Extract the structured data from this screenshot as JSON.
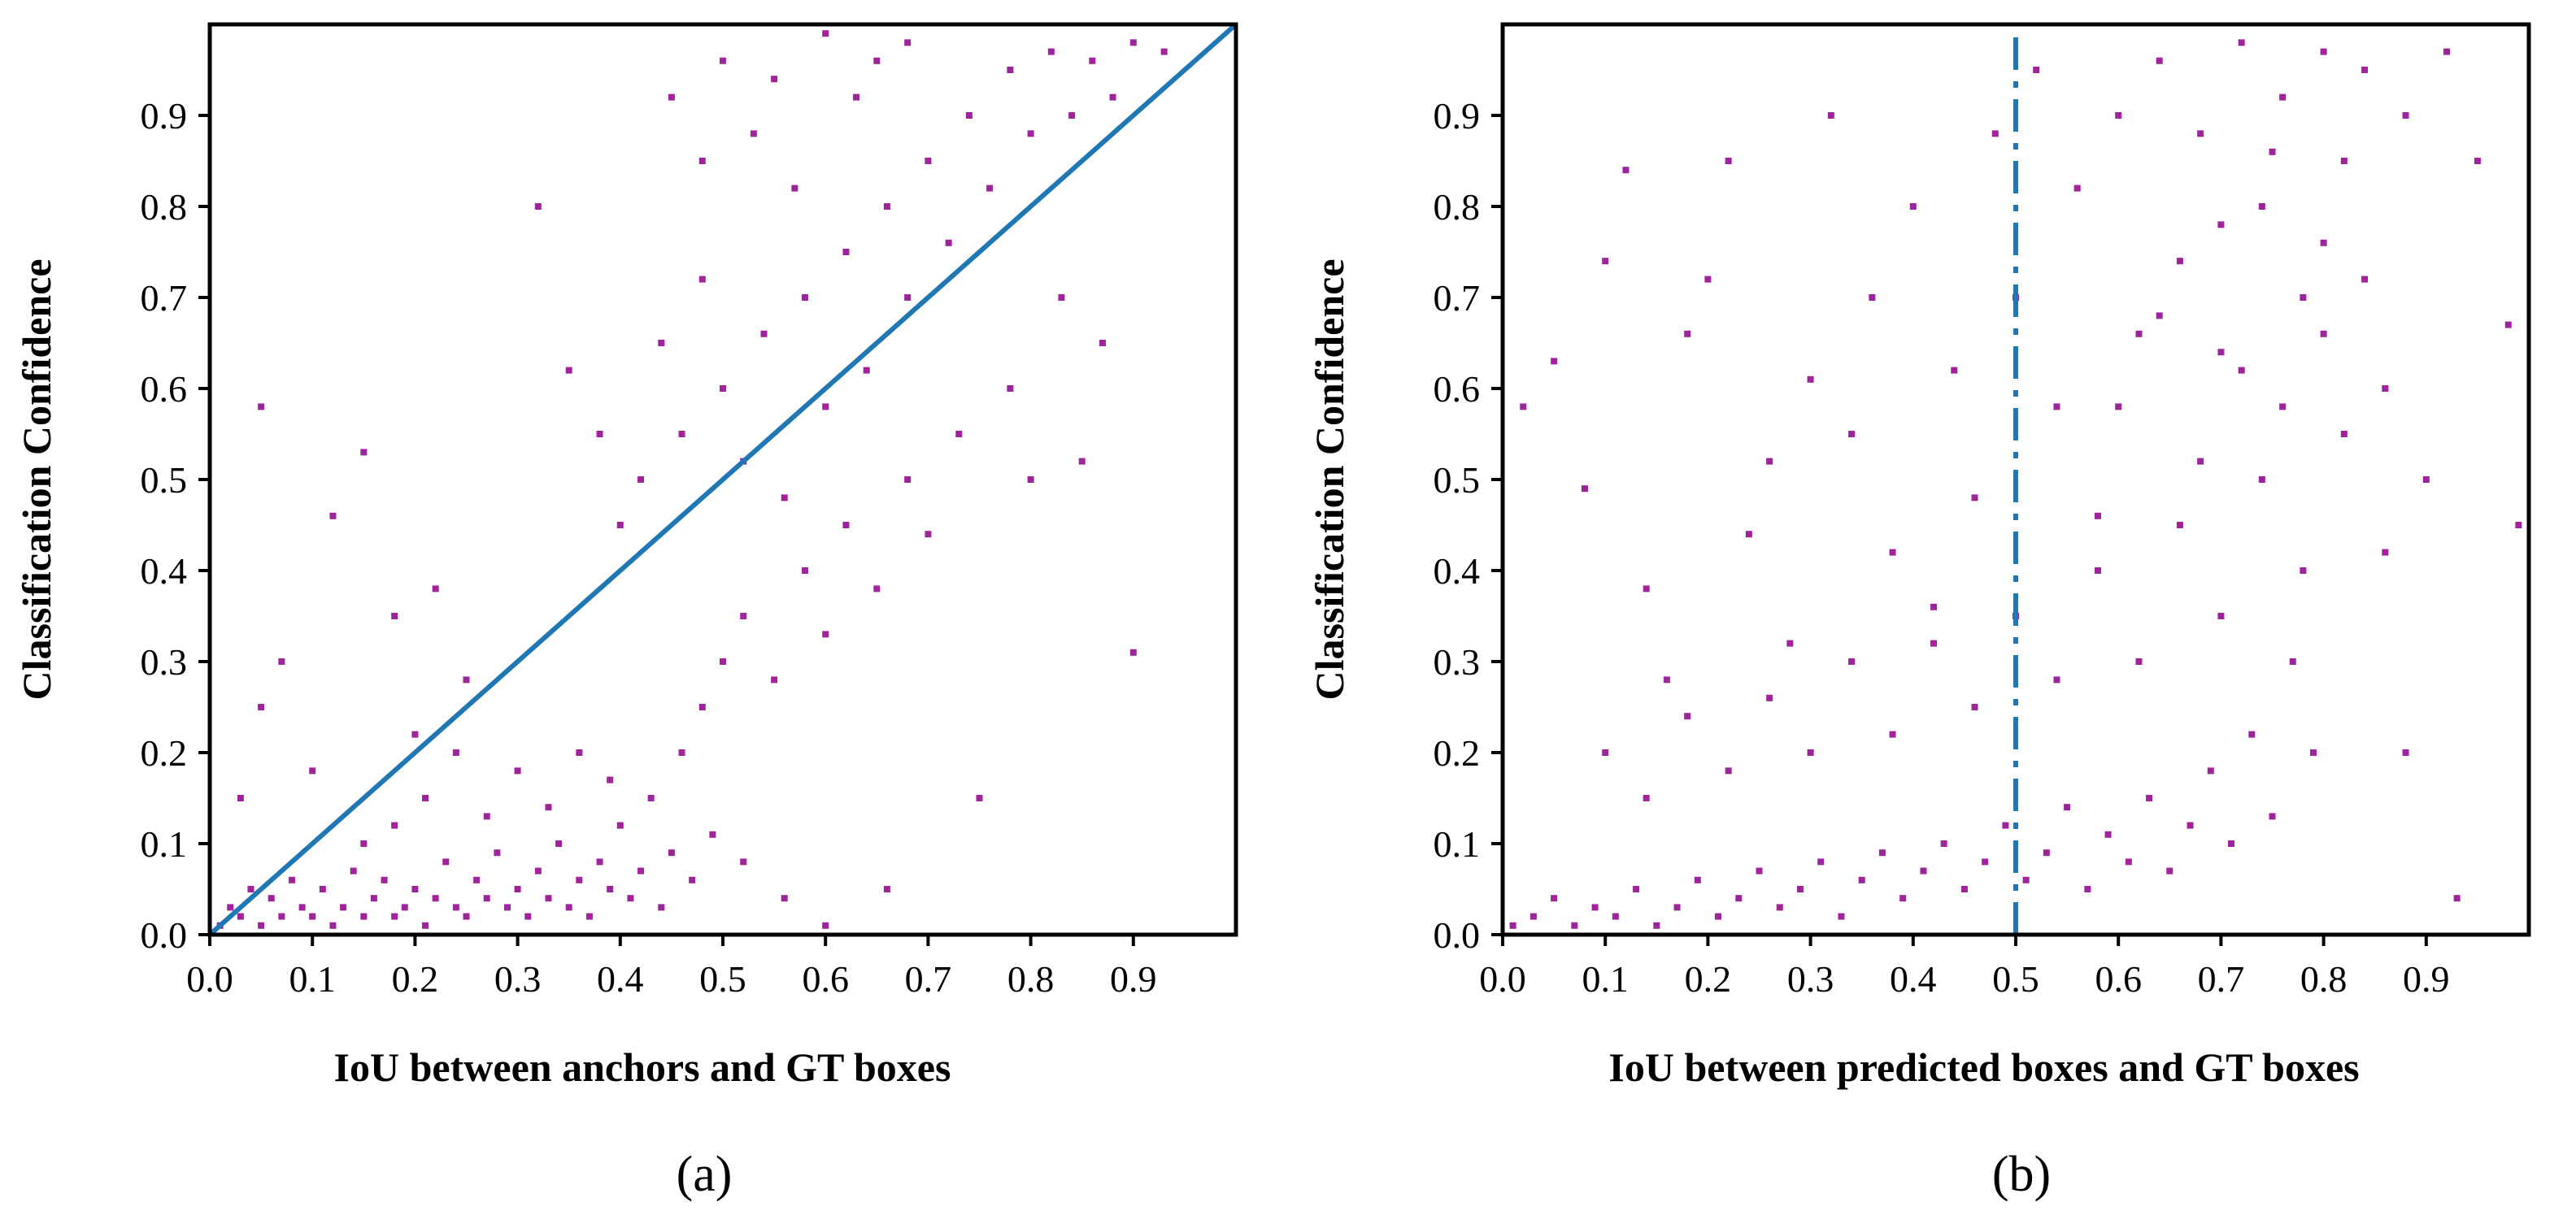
{
  "chart_data": [
    {
      "type": "scatter",
      "caption": "(a)",
      "xlabel": "IoU between anchors and GT boxes",
      "ylabel": "Classification Confidence",
      "xlim": [
        0.0,
        1.0
      ],
      "ylim": [
        0.0,
        1.0
      ],
      "xticks": [
        "0.0",
        "0.1",
        "0.2",
        "0.3",
        "0.4",
        "0.5",
        "0.6",
        "0.7",
        "0.8",
        "0.9"
      ],
      "yticks": [
        "0.0",
        "0.1",
        "0.2",
        "0.3",
        "0.4",
        "0.5",
        "0.6",
        "0.7",
        "0.8",
        "0.9"
      ],
      "marker_color": "#a0239b",
      "reference_line": {
        "style": "solid",
        "color": "#1f77b4",
        "from": [
          0.0,
          0.0
        ],
        "to": [
          1.0,
          1.0
        ]
      },
      "points": [
        [
          0.01,
          0.01
        ],
        [
          0.02,
          0.03
        ],
        [
          0.03,
          0.02
        ],
        [
          0.04,
          0.05
        ],
        [
          0.05,
          0.01
        ],
        [
          0.06,
          0.04
        ],
        [
          0.07,
          0.02
        ],
        [
          0.08,
          0.06
        ],
        [
          0.09,
          0.03
        ],
        [
          0.1,
          0.02
        ],
        [
          0.11,
          0.05
        ],
        [
          0.12,
          0.01
        ],
        [
          0.13,
          0.03
        ],
        [
          0.14,
          0.07
        ],
        [
          0.15,
          0.02
        ],
        [
          0.16,
          0.04
        ],
        [
          0.17,
          0.06
        ],
        [
          0.18,
          0.02
        ],
        [
          0.19,
          0.03
        ],
        [
          0.2,
          0.05
        ],
        [
          0.21,
          0.01
        ],
        [
          0.22,
          0.04
        ],
        [
          0.23,
          0.08
        ],
        [
          0.24,
          0.03
        ],
        [
          0.25,
          0.02
        ],
        [
          0.26,
          0.06
        ],
        [
          0.27,
          0.04
        ],
        [
          0.28,
          0.09
        ],
        [
          0.29,
          0.03
        ],
        [
          0.3,
          0.05
        ],
        [
          0.31,
          0.02
        ],
        [
          0.32,
          0.07
        ],
        [
          0.33,
          0.04
        ],
        [
          0.34,
          0.1
        ],
        [
          0.35,
          0.03
        ],
        [
          0.36,
          0.06
        ],
        [
          0.37,
          0.02
        ],
        [
          0.38,
          0.08
        ],
        [
          0.39,
          0.05
        ],
        [
          0.4,
          0.12
        ],
        [
          0.41,
          0.04
        ],
        [
          0.42,
          0.07
        ],
        [
          0.43,
          0.15
        ],
        [
          0.44,
          0.03
        ],
        [
          0.45,
          0.09
        ],
        [
          0.46,
          0.2
        ],
        [
          0.47,
          0.06
        ],
        [
          0.48,
          0.25
        ],
        [
          0.49,
          0.11
        ],
        [
          0.5,
          0.3
        ],
        [
          0.03,
          0.15
        ],
        [
          0.05,
          0.25
        ],
        [
          0.07,
          0.3
        ],
        [
          0.1,
          0.18
        ],
        [
          0.12,
          0.46
        ],
        [
          0.15,
          0.53
        ],
        [
          0.18,
          0.35
        ],
        [
          0.2,
          0.22
        ],
        [
          0.22,
          0.38
        ],
        [
          0.25,
          0.28
        ],
        [
          0.05,
          0.58
        ],
        [
          0.15,
          0.1
        ],
        [
          0.18,
          0.12
        ],
        [
          0.21,
          0.15
        ],
        [
          0.24,
          0.2
        ],
        [
          0.27,
          0.13
        ],
        [
          0.3,
          0.18
        ],
        [
          0.33,
          0.14
        ],
        [
          0.36,
          0.2
        ],
        [
          0.39,
          0.17
        ],
        [
          0.32,
          0.8
        ],
        [
          0.35,
          0.62
        ],
        [
          0.38,
          0.55
        ],
        [
          0.4,
          0.45
        ],
        [
          0.42,
          0.5
        ],
        [
          0.44,
          0.65
        ],
        [
          0.46,
          0.55
        ],
        [
          0.48,
          0.72
        ],
        [
          0.5,
          0.6
        ],
        [
          0.52,
          0.52
        ],
        [
          0.54,
          0.66
        ],
        [
          0.56,
          0.48
        ],
        [
          0.58,
          0.7
        ],
        [
          0.6,
          0.58
        ],
        [
          0.62,
          0.75
        ],
        [
          0.64,
          0.62
        ],
        [
          0.66,
          0.8
        ],
        [
          0.68,
          0.7
        ],
        [
          0.7,
          0.85
        ],
        [
          0.72,
          0.76
        ],
        [
          0.74,
          0.9
        ],
        [
          0.76,
          0.82
        ],
        [
          0.78,
          0.95
        ],
        [
          0.8,
          0.88
        ],
        [
          0.82,
          0.97
        ],
        [
          0.84,
          0.9
        ],
        [
          0.86,
          0.96
        ],
        [
          0.88,
          0.92
        ],
        [
          0.9,
          0.98
        ],
        [
          0.93,
          0.97
        ],
        [
          0.52,
          0.35
        ],
        [
          0.55,
          0.28
        ],
        [
          0.58,
          0.4
        ],
        [
          0.6,
          0.33
        ],
        [
          0.62,
          0.45
        ],
        [
          0.65,
          0.38
        ],
        [
          0.68,
          0.5
        ],
        [
          0.7,
          0.44
        ],
        [
          0.73,
          0.55
        ],
        [
          0.75,
          0.15
        ],
        [
          0.78,
          0.6
        ],
        [
          0.8,
          0.5
        ],
        [
          0.83,
          0.7
        ],
        [
          0.85,
          0.52
        ],
        [
          0.87,
          0.65
        ],
        [
          0.9,
          0.31
        ],
        [
          0.66,
          0.05
        ],
        [
          0.6,
          0.01
        ],
        [
          0.56,
          0.04
        ],
        [
          0.52,
          0.08
        ],
        [
          0.45,
          0.92
        ],
        [
          0.48,
          0.85
        ],
        [
          0.5,
          0.96
        ],
        [
          0.53,
          0.88
        ],
        [
          0.55,
          0.94
        ],
        [
          0.57,
          0.82
        ],
        [
          0.6,
          0.99
        ],
        [
          0.63,
          0.92
        ],
        [
          0.65,
          0.96
        ],
        [
          0.68,
          0.98
        ]
      ]
    },
    {
      "type": "scatter",
      "caption": "(b)",
      "xlabel": "IoU between predicted boxes and GT boxes",
      "ylabel": "Classification Confidence",
      "xlim": [
        0.0,
        1.0
      ],
      "ylim": [
        0.0,
        1.0
      ],
      "xticks": [
        "0.0",
        "0.1",
        "0.2",
        "0.3",
        "0.4",
        "0.5",
        "0.6",
        "0.7",
        "0.8",
        "0.9"
      ],
      "yticks": [
        "0.0",
        "0.1",
        "0.2",
        "0.3",
        "0.4",
        "0.5",
        "0.6",
        "0.7",
        "0.8",
        "0.9"
      ],
      "marker_color": "#a0239b",
      "reference_line": {
        "style": "dashed",
        "color": "#1f77b4",
        "from": [
          0.5,
          0.0
        ],
        "to": [
          0.5,
          1.0
        ]
      },
      "points": [
        [
          0.01,
          0.01
        ],
        [
          0.03,
          0.02
        ],
        [
          0.05,
          0.04
        ],
        [
          0.07,
          0.01
        ],
        [
          0.09,
          0.03
        ],
        [
          0.11,
          0.02
        ],
        [
          0.13,
          0.05
        ],
        [
          0.15,
          0.01
        ],
        [
          0.17,
          0.03
        ],
        [
          0.19,
          0.06
        ],
        [
          0.21,
          0.02
        ],
        [
          0.23,
          0.04
        ],
        [
          0.25,
          0.07
        ],
        [
          0.27,
          0.03
        ],
        [
          0.29,
          0.05
        ],
        [
          0.31,
          0.08
        ],
        [
          0.33,
          0.02
        ],
        [
          0.35,
          0.06
        ],
        [
          0.37,
          0.09
        ],
        [
          0.39,
          0.04
        ],
        [
          0.41,
          0.07
        ],
        [
          0.43,
          0.1
        ],
        [
          0.45,
          0.05
        ],
        [
          0.47,
          0.08
        ],
        [
          0.49,
          0.12
        ],
        [
          0.51,
          0.06
        ],
        [
          0.53,
          0.09
        ],
        [
          0.55,
          0.14
        ],
        [
          0.57,
          0.05
        ],
        [
          0.59,
          0.11
        ],
        [
          0.61,
          0.08
        ],
        [
          0.63,
          0.15
        ],
        [
          0.65,
          0.07
        ],
        [
          0.67,
          0.12
        ],
        [
          0.69,
          0.18
        ],
        [
          0.71,
          0.1
        ],
        [
          0.73,
          0.22
        ],
        [
          0.75,
          0.13
        ],
        [
          0.77,
          0.3
        ],
        [
          0.79,
          0.2
        ],
        [
          0.02,
          0.58
        ],
        [
          0.05,
          0.63
        ],
        [
          0.08,
          0.49
        ],
        [
          0.1,
          0.74
        ],
        [
          0.12,
          0.84
        ],
        [
          0.14,
          0.38
        ],
        [
          0.16,
          0.28
        ],
        [
          0.18,
          0.66
        ],
        [
          0.2,
          0.72
        ],
        [
          0.22,
          0.85
        ],
        [
          0.24,
          0.44
        ],
        [
          0.26,
          0.52
        ],
        [
          0.28,
          0.32
        ],
        [
          0.3,
          0.61
        ],
        [
          0.32,
          0.9
        ],
        [
          0.34,
          0.55
        ],
        [
          0.36,
          0.7
        ],
        [
          0.38,
          0.42
        ],
        [
          0.4,
          0.8
        ],
        [
          0.42,
          0.36
        ],
        [
          0.44,
          0.62
        ],
        [
          0.46,
          0.48
        ],
        [
          0.48,
          0.88
        ],
        [
          0.5,
          0.7
        ],
        [
          0.52,
          0.95
        ],
        [
          0.54,
          0.58
        ],
        [
          0.56,
          0.82
        ],
        [
          0.58,
          0.46
        ],
        [
          0.6,
          0.9
        ],
        [
          0.62,
          0.66
        ],
        [
          0.64,
          0.96
        ],
        [
          0.66,
          0.74
        ],
        [
          0.68,
          0.88
        ],
        [
          0.7,
          0.64
        ],
        [
          0.72,
          0.98
        ],
        [
          0.74,
          0.8
        ],
        [
          0.76,
          0.92
        ],
        [
          0.78,
          0.7
        ],
        [
          0.8,
          0.97
        ],
        [
          0.82,
          0.85
        ],
        [
          0.84,
          0.95
        ],
        [
          0.86,
          0.6
        ],
        [
          0.88,
          0.9
        ],
        [
          0.9,
          0.5
        ],
        [
          0.92,
          0.97
        ],
        [
          0.95,
          0.85
        ],
        [
          0.98,
          0.67
        ],
        [
          0.99,
          0.45
        ],
        [
          0.93,
          0.04
        ],
        [
          0.88,
          0.2
        ],
        [
          0.1,
          0.2
        ],
        [
          0.14,
          0.15
        ],
        [
          0.18,
          0.24
        ],
        [
          0.22,
          0.18
        ],
        [
          0.26,
          0.26
        ],
        [
          0.3,
          0.2
        ],
        [
          0.34,
          0.3
        ],
        [
          0.38,
          0.22
        ],
        [
          0.42,
          0.32
        ],
        [
          0.46,
          0.25
        ],
        [
          0.5,
          0.35
        ],
        [
          0.54,
          0.28
        ],
        [
          0.58,
          0.4
        ],
        [
          0.62,
          0.3
        ],
        [
          0.66,
          0.45
        ],
        [
          0.7,
          0.35
        ],
        [
          0.74,
          0.5
        ],
        [
          0.78,
          0.4
        ],
        [
          0.82,
          0.55
        ],
        [
          0.86,
          0.42
        ],
        [
          0.6,
          0.58
        ],
        [
          0.64,
          0.68
        ],
        [
          0.68,
          0.52
        ],
        [
          0.72,
          0.62
        ],
        [
          0.76,
          0.58
        ],
        [
          0.8,
          0.66
        ],
        [
          0.84,
          0.72
        ],
        [
          0.7,
          0.78
        ],
        [
          0.75,
          0.86
        ],
        [
          0.8,
          0.76
        ]
      ]
    }
  ]
}
